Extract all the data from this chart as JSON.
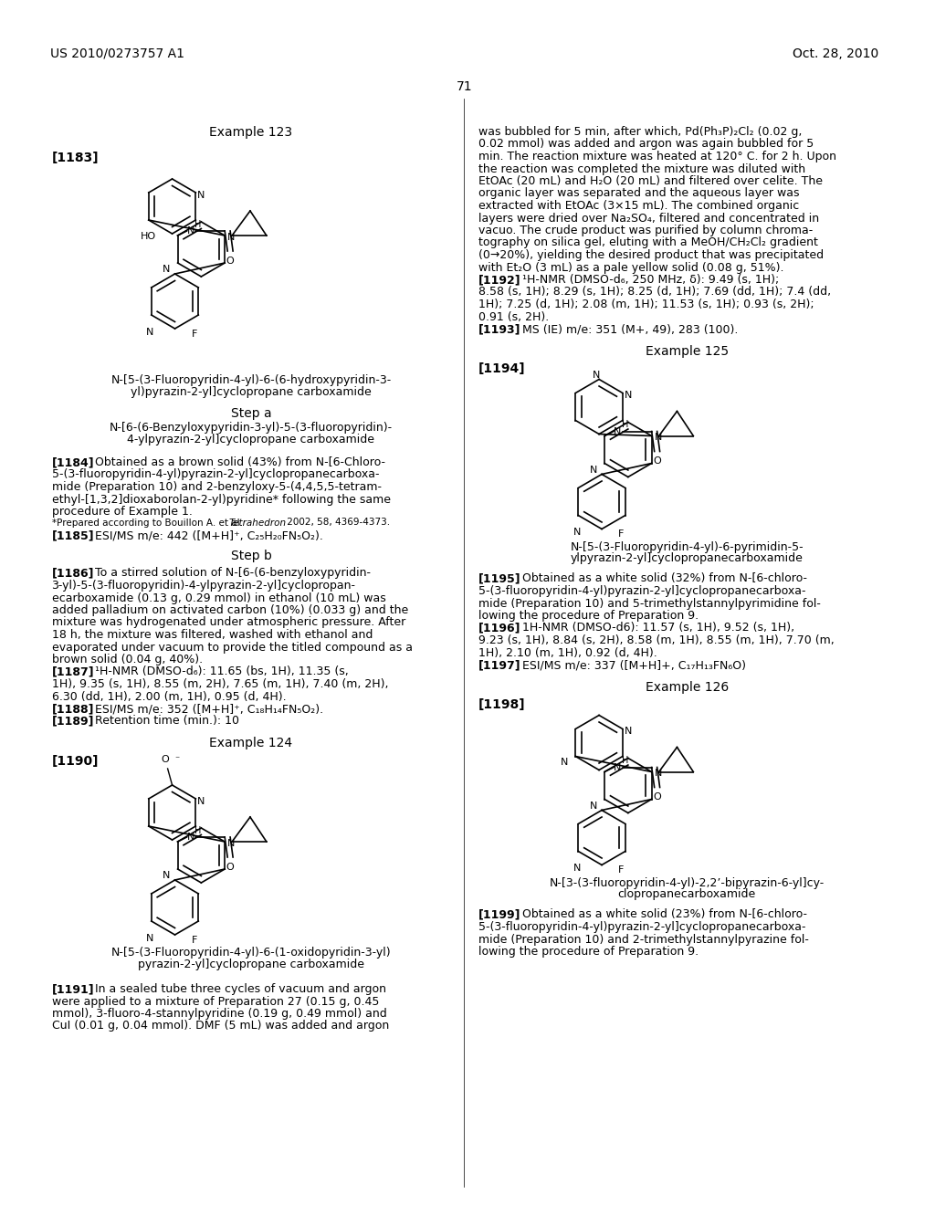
{
  "background_color": "#ffffff",
  "header_left": "US 2010/0273757 A1",
  "header_right": "Oct. 28, 2010",
  "page_number": "71"
}
